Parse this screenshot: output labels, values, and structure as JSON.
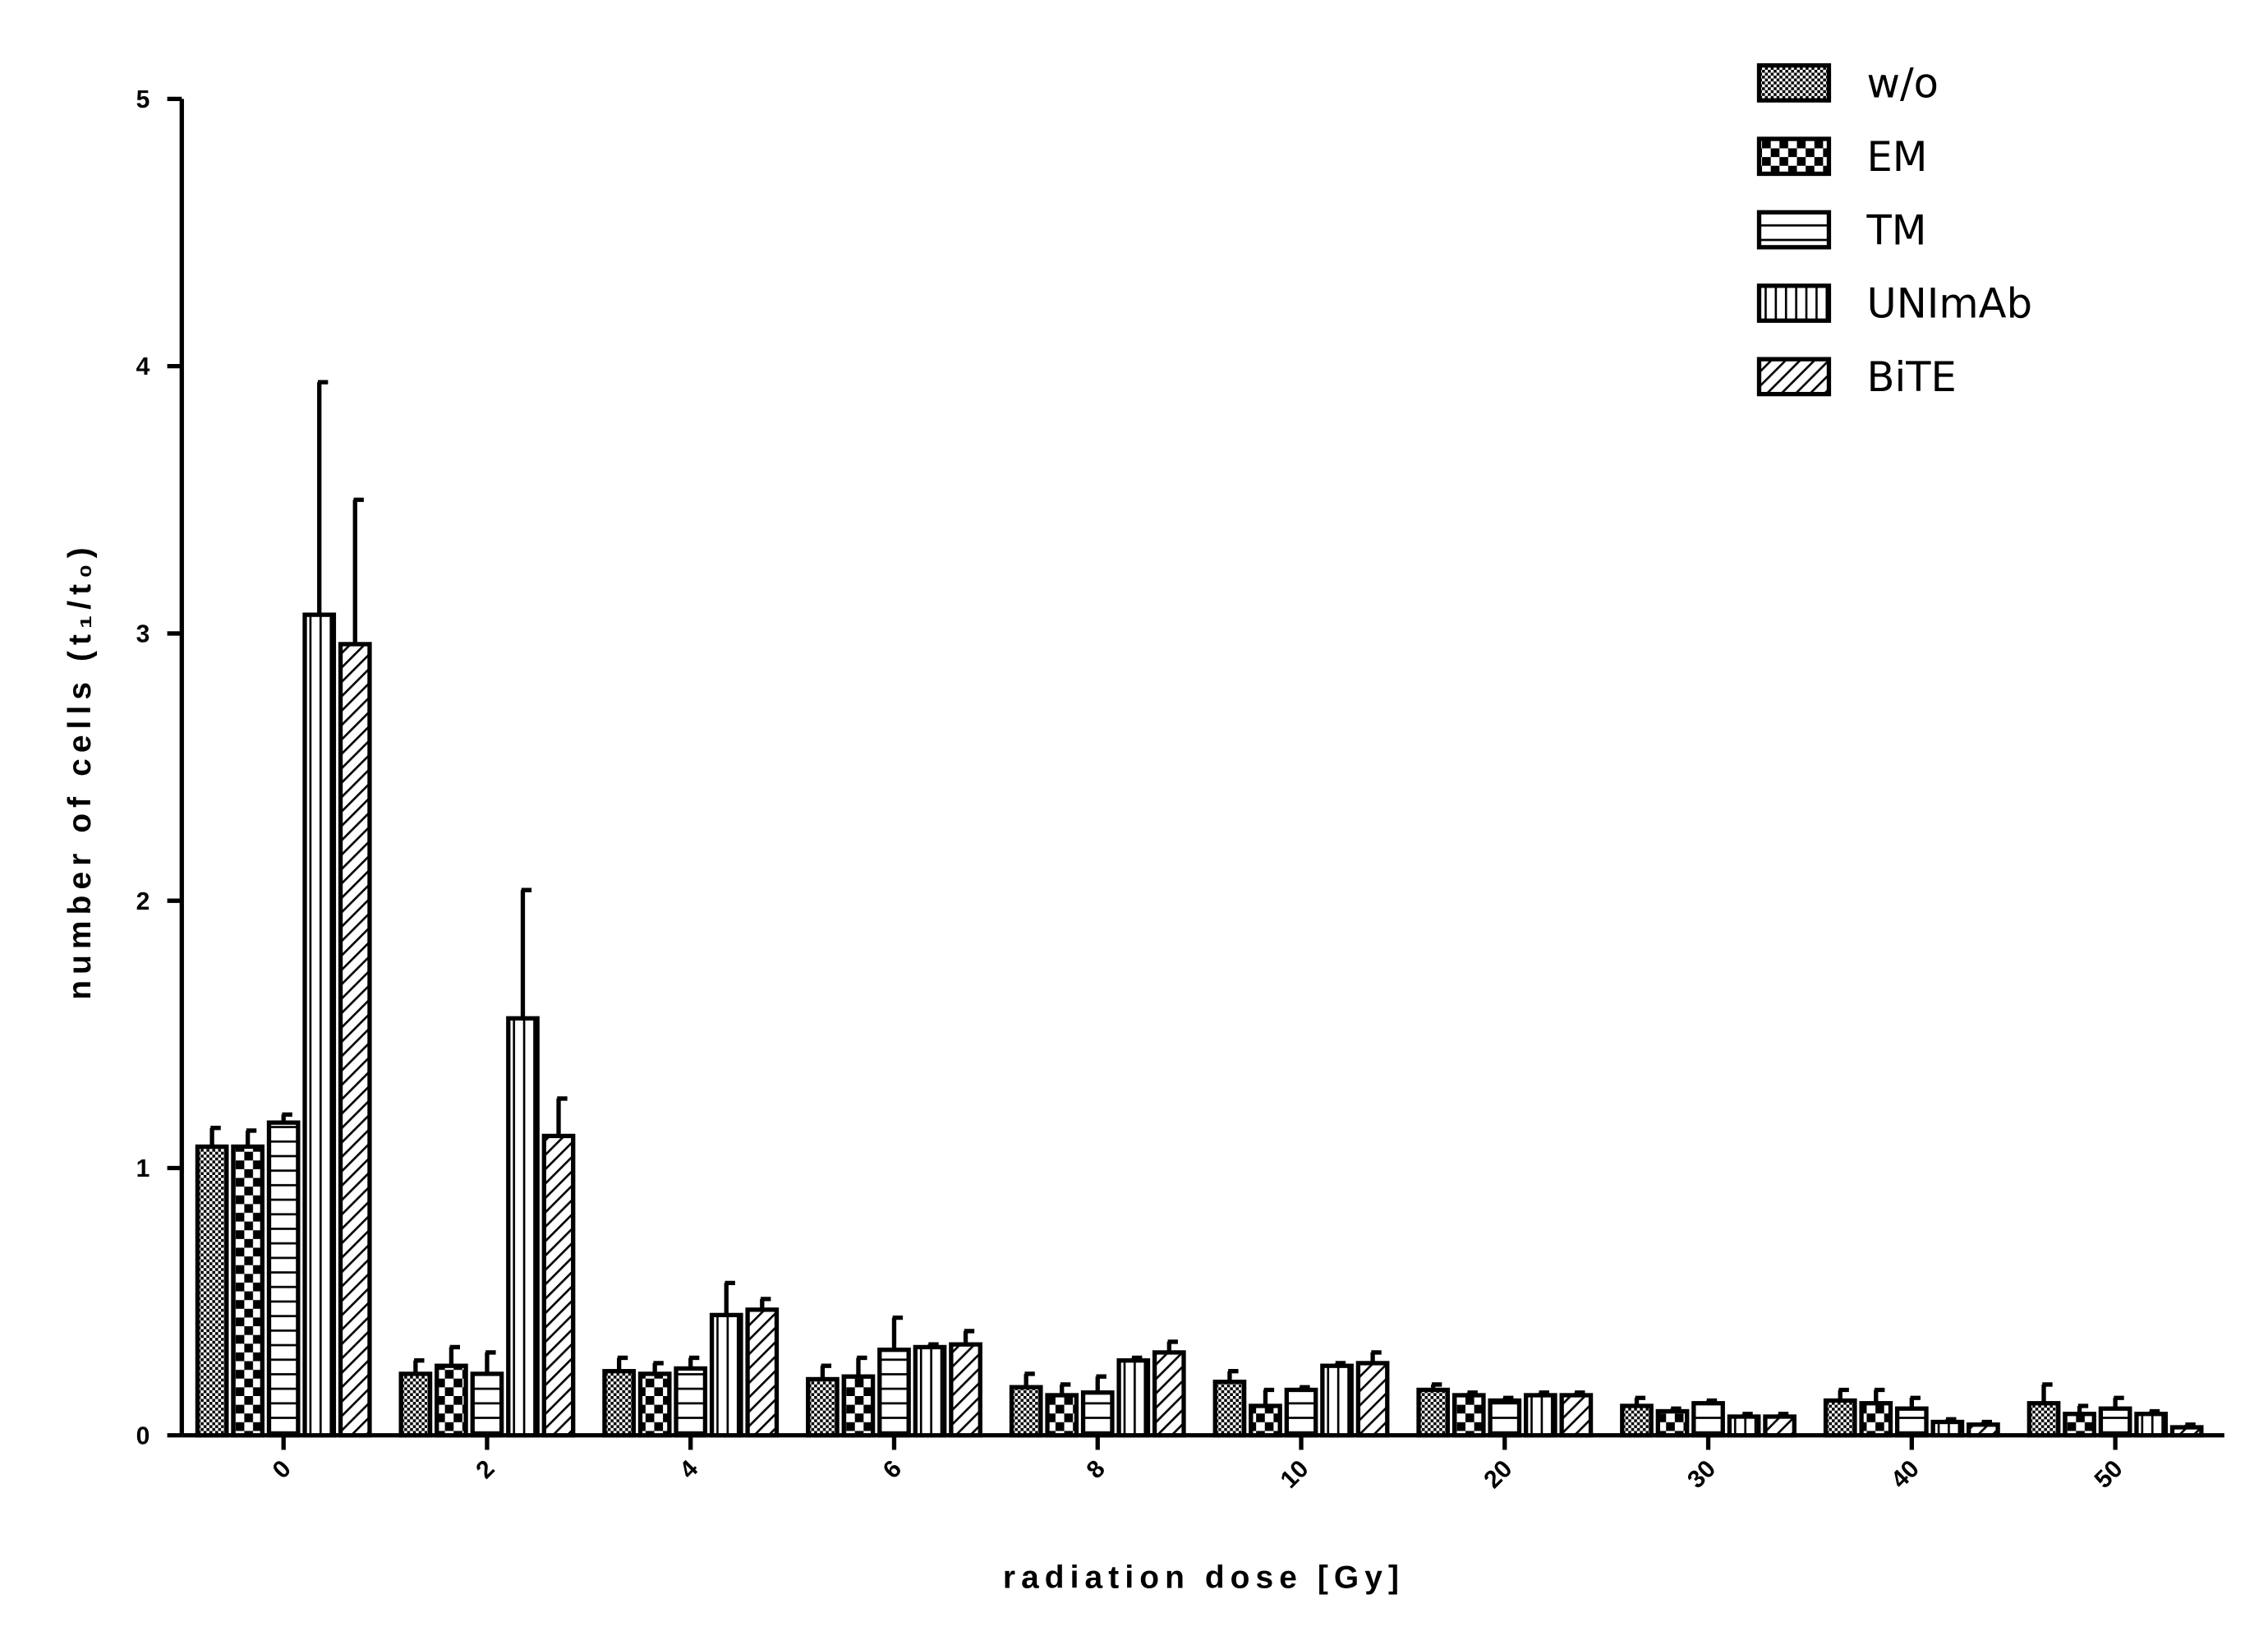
{
  "chart_data": {
    "type": "bar",
    "x_label": "radiation dose [Gy]",
    "y_label": "number of cells (t₁/t₀)",
    "categories": [
      "0",
      "2",
      "4",
      "6",
      "8",
      "10",
      "20",
      "30",
      "40",
      "50"
    ],
    "ylim": [
      0,
      5
    ],
    "yticks": [
      0,
      1,
      2,
      3,
      4,
      5
    ],
    "legend": "top-right",
    "series": [
      {
        "name": "w/o",
        "color": "#000000",
        "pattern": "dots",
        "values": [
          1.08,
          0.23,
          0.24,
          0.21,
          0.18,
          0.2,
          0.17,
          0.11,
          0.13,
          0.12
        ],
        "errors": [
          0.07,
          0.05,
          0.05,
          0.05,
          0.05,
          0.04,
          0.02,
          0.03,
          0.04,
          0.07
        ]
      },
      {
        "name": "EM",
        "color": "#000000",
        "pattern": "checker",
        "values": [
          1.08,
          0.26,
          0.23,
          0.22,
          0.15,
          0.11,
          0.15,
          0.09,
          0.12,
          0.08
        ],
        "errors": [
          0.06,
          0.07,
          0.04,
          0.07,
          0.04,
          0.06,
          0.01,
          0.01,
          0.05,
          0.03
        ]
      },
      {
        "name": "TM",
        "color": "#000000",
        "pattern": "hlines",
        "values": [
          1.17,
          0.23,
          0.25,
          0.32,
          0.16,
          0.17,
          0.13,
          0.12,
          0.1,
          0.1
        ],
        "errors": [
          0.03,
          0.08,
          0.04,
          0.12,
          0.06,
          0.01,
          0.01,
          0.01,
          0.04,
          0.04
        ]
      },
      {
        "name": "UNImAb",
        "color": "#000000",
        "pattern": "vlines",
        "values": [
          3.07,
          1.56,
          0.45,
          0.33,
          0.28,
          0.26,
          0.15,
          0.07,
          0.05,
          0.08
        ],
        "errors": [
          0.87,
          0.48,
          0.12,
          0.01,
          0.01,
          0.01,
          0.01,
          0.01,
          0.01,
          0.01
        ]
      },
      {
        "name": "BiTE",
        "color": "#000000",
        "pattern": "diag",
        "values": [
          2.96,
          1.12,
          0.47,
          0.34,
          0.31,
          0.27,
          0.15,
          0.07,
          0.04,
          0.03
        ],
        "errors": [
          0.54,
          0.14,
          0.04,
          0.05,
          0.04,
          0.04,
          0.01,
          0.01,
          0.01,
          0.01
        ]
      }
    ]
  }
}
